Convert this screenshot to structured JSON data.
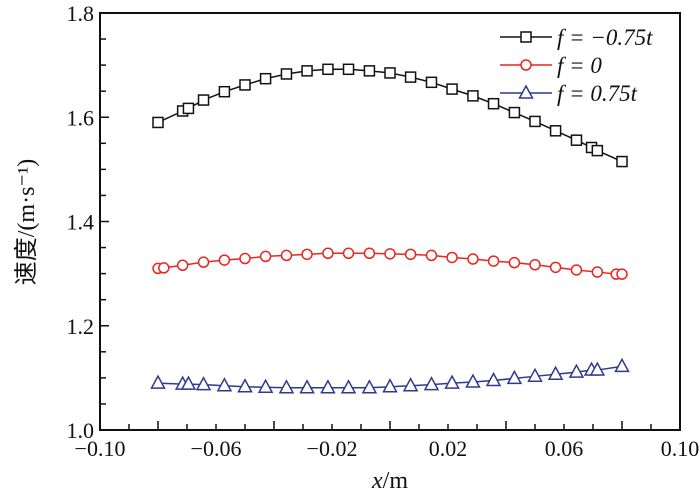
{
  "chart_data": {
    "type": "line",
    "title": "",
    "xlabel": "x/m",
    "ylabel": "速度/(m·s⁻¹)",
    "xlim": [
      -0.1,
      0.1
    ],
    "ylim": [
      1.0,
      1.8
    ],
    "xticks": [
      -0.1,
      -0.06,
      -0.02,
      0.02,
      0.06,
      0.1
    ],
    "xtick_labels": [
      "−0.10",
      "−0.06",
      "−0.02",
      "0.02",
      "0.06",
      "0.10"
    ],
    "yticks": [
      1.0,
      1.2,
      1.4,
      1.6,
      1.8
    ],
    "ytick_labels": [
      "1.0",
      "1.2",
      "1.4",
      "1.6",
      "1.8"
    ],
    "grid": false,
    "legend_position": "top-right",
    "series": [
      {
        "name": "f = −0.75t",
        "color": "#111111",
        "marker": "square",
        "x": [
          -0.08,
          -0.0715,
          -0.0695,
          -0.0643,
          -0.0571,
          -0.05,
          -0.0429,
          -0.0357,
          -0.0286,
          -0.0214,
          -0.0143,
          -0.0071,
          0,
          0.0071,
          0.0143,
          0.0214,
          0.0286,
          0.0357,
          0.0429,
          0.05,
          0.0571,
          0.0643,
          0.0695,
          0.0715,
          0.08
        ],
        "y": [
          1.59,
          1.612,
          1.617,
          1.633,
          1.649,
          1.662,
          1.674,
          1.683,
          1.689,
          1.692,
          1.692,
          1.689,
          1.685,
          1.677,
          1.667,
          1.654,
          1.641,
          1.626,
          1.609,
          1.592,
          1.574,
          1.556,
          1.542,
          1.536,
          1.515
        ]
      },
      {
        "name": "f = 0",
        "color": "#e8261e",
        "marker": "circle",
        "x": [
          -0.08,
          -0.078,
          -0.0715,
          -0.0643,
          -0.0571,
          -0.05,
          -0.0429,
          -0.0357,
          -0.0286,
          -0.0214,
          -0.0143,
          -0.0071,
          0,
          0.0071,
          0.0143,
          0.0214,
          0.0286,
          0.0357,
          0.0429,
          0.05,
          0.0571,
          0.0643,
          0.0715,
          0.078,
          0.08
        ],
        "y": [
          1.31,
          1.311,
          1.316,
          1.322,
          1.326,
          1.329,
          1.333,
          1.335,
          1.337,
          1.339,
          1.339,
          1.339,
          1.338,
          1.337,
          1.335,
          1.331,
          1.328,
          1.324,
          1.321,
          1.317,
          1.312,
          1.307,
          1.303,
          1.299,
          1.299
        ]
      },
      {
        "name": "f = 0.75t",
        "color": "#2e3a8c",
        "marker": "triangle",
        "x": [
          -0.08,
          -0.0715,
          -0.0695,
          -0.0643,
          -0.0571,
          -0.05,
          -0.0429,
          -0.0357,
          -0.0286,
          -0.0214,
          -0.0143,
          -0.0071,
          0,
          0.0071,
          0.0143,
          0.0214,
          0.0286,
          0.0357,
          0.0429,
          0.05,
          0.0571,
          0.0643,
          0.0695,
          0.0715,
          0.08
        ],
        "y": [
          1.09,
          1.088,
          1.088,
          1.087,
          1.085,
          1.083,
          1.082,
          1.081,
          1.081,
          1.081,
          1.081,
          1.081,
          1.083,
          1.085,
          1.087,
          1.09,
          1.092,
          1.095,
          1.099,
          1.103,
          1.107,
          1.111,
          1.115,
          1.115,
          1.122
        ]
      }
    ]
  }
}
